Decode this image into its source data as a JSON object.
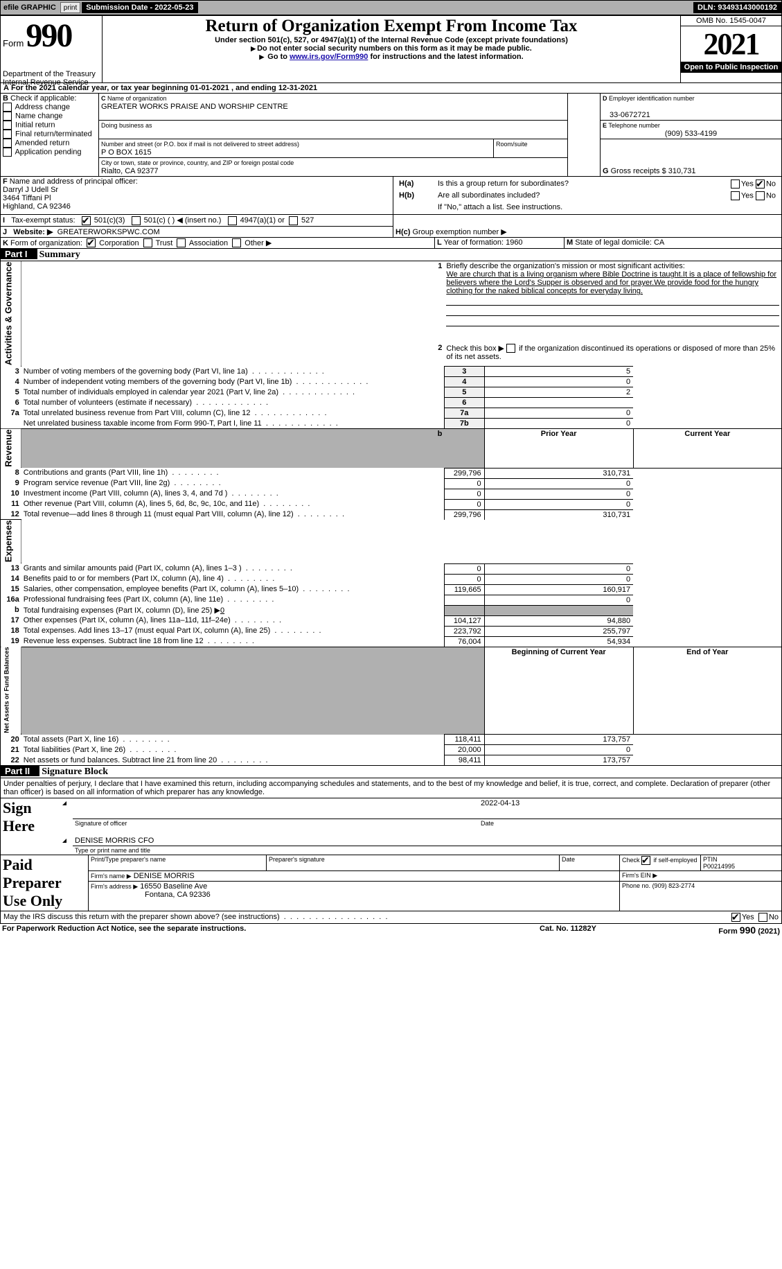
{
  "topbar": {
    "efile_label": "efile GRAPHIC",
    "print_btn": "print",
    "submission_label": "Submission Date - 2022-05-23",
    "dln": "DLN: 93493143000192"
  },
  "header": {
    "form_word": "Form",
    "form_num": "990",
    "dept": "Department of the Treasury",
    "irs": "Internal Revenue Service",
    "title": "Return of Organization Exempt From Income Tax",
    "subtitle": "Under section 501(c), 527, or 4947(a)(1) of the Internal Revenue Code (except private foundations)",
    "note_ssn": "Do not enter social security numbers on this form as it may be made public.",
    "note_goto_pre": "Go to ",
    "note_goto_link": "www.irs.gov/Form990",
    "note_goto_post": " for instructions and the latest information.",
    "omb": "OMB No. 1545-0047",
    "year": "2021",
    "open_public": "Open to Public Inspection"
  },
  "period": {
    "line": "For the 2021 calendar year, or tax year beginning ",
    "begin": "01-01-2021",
    "mid": " , and ending ",
    "end": "12-31-2021"
  },
  "boxB": {
    "label": "Check if applicable:",
    "items": [
      "Address change",
      "Name change",
      "Initial return",
      "Final return/terminated",
      "Amended return",
      "Application pending"
    ]
  },
  "boxC": {
    "name_label": "Name of organization",
    "org_name": "GREATER WORKS PRAISE AND WORSHIP CENTRE",
    "dba_label": "Doing business as",
    "addr_label": "Number and street (or P.O. box if mail is not delivered to street address)",
    "room_label": "Room/suite",
    "addr": "P O BOX 1615",
    "city_label": "City or town, state or province, country, and ZIP or foreign postal code",
    "city": "Rialto, CA  92377"
  },
  "boxD": {
    "label": "Employer identification number",
    "val": "33-0672721"
  },
  "boxE": {
    "label": "Telephone number",
    "val": "(909) 533-4199"
  },
  "boxG": {
    "label": "Gross receipts $",
    "val": "310,731"
  },
  "boxF": {
    "label": "Name and address of principal officer:",
    "name": "Darryl J Udell Sr",
    "addr1": "3464 Tiffani Pl",
    "addr2": "Highland, CA  92346"
  },
  "boxH": {
    "ha": "Is this a group return for subordinates?",
    "hb": "Are all subordinates included?",
    "yes": "Yes",
    "no": "No",
    "ifno": "If \"No,\" attach a list. See instructions.",
    "hc": "Group exemption number ▶"
  },
  "rowI": {
    "label": "Tax-exempt status:",
    "c3": "501(c)(3)",
    "c": "501(c) (  ) ◀ (insert no.)",
    "a1": "4947(a)(1) or",
    "527": "527"
  },
  "rowJ": {
    "label": "Website: ▶",
    "val": "GREATERWORKSPWC.COM"
  },
  "rowK": {
    "label": "Form of organization:",
    "corp": "Corporation",
    "trust": "Trust",
    "assoc": "Association",
    "other": "Other ▶"
  },
  "rowL": {
    "label": "Year of formation:",
    "val": "1960"
  },
  "rowM": {
    "label": "State of legal domicile:",
    "val": "CA"
  },
  "part1": {
    "title_part": "Part I",
    "title_name": "Summary",
    "q1_label": "Briefly describe the organization's mission or most significant activities:",
    "q1_text": "We are church that is a living organism where Bible Doctrine is taught.It is a place of fellowship for believers where the Lord's Supper is observed and for prayer.We provide food for the hungry clothing for the naked biblical concepts for everyday living.",
    "q2": "Check this box ▶       if the organization discontinued its operations or disposed of more than 25% of its net assets.",
    "lines": [
      {
        "n": "3",
        "t": "Number of voting members of the governing body (Part VI, line 1a)",
        "box": "3",
        "v": "5"
      },
      {
        "n": "4",
        "t": "Number of independent voting members of the governing body (Part VI, line 1b)",
        "box": "4",
        "v": "0"
      },
      {
        "n": "5",
        "t": "Total number of individuals employed in calendar year 2021 (Part V, line 2a)",
        "box": "5",
        "v": "2"
      },
      {
        "n": "6",
        "t": "Total number of volunteers (estimate if necessary)",
        "box": "6",
        "v": ""
      },
      {
        "n": "7a",
        "t": "Total unrelated business revenue from Part VIII, column (C), line 12",
        "box": "7a",
        "v": "0"
      },
      {
        "n": "",
        "t": "Net unrelated business taxable income from Form 990-T, Part I, line 11",
        "box": "7b",
        "v": "0"
      }
    ],
    "col_prior": "Prior Year",
    "col_current": "Current Year",
    "rev_rows": [
      {
        "n": "8",
        "t": "Contributions and grants (Part VIII, line 1h)",
        "p": "299,796",
        "c": "310,731"
      },
      {
        "n": "9",
        "t": "Program service revenue (Part VIII, line 2g)",
        "p": "0",
        "c": "0"
      },
      {
        "n": "10",
        "t": "Investment income (Part VIII, column (A), lines 3, 4, and 7d )",
        "p": "0",
        "c": "0"
      },
      {
        "n": "11",
        "t": "Other revenue (Part VIII, column (A), lines 5, 6d, 8c, 9c, 10c, and 11e)",
        "p": "0",
        "c": "0"
      },
      {
        "n": "12",
        "t": "Total revenue—add lines 8 through 11 (must equal Part VIII, column (A), line 12)",
        "p": "299,796",
        "c": "310,731"
      }
    ],
    "exp_rows": [
      {
        "n": "13",
        "t": "Grants and similar amounts paid (Part IX, column (A), lines 1–3 )",
        "p": "0",
        "c": "0"
      },
      {
        "n": "14",
        "t": "Benefits paid to or for members (Part IX, column (A), line 4)",
        "p": "0",
        "c": "0"
      },
      {
        "n": "15",
        "t": "Salaries, other compensation, employee benefits (Part IX, column (A), lines 5–10)",
        "p": "119,665",
        "c": "160,917"
      },
      {
        "n": "16a",
        "t": "Professional fundraising fees (Part IX, column (A), line 11e)",
        "p": "",
        "c": "0"
      },
      {
        "n": "b",
        "t": "Total fundraising expenses (Part IX, column (D), line 25) ▶",
        "p": "shade",
        "c": "shade",
        "extra": "0"
      },
      {
        "n": "17",
        "t": "Other expenses (Part IX, column (A), lines 11a–11d, 11f–24e)",
        "p": "104,127",
        "c": "94,880"
      },
      {
        "n": "18",
        "t": "Total expenses. Add lines 13–17 (must equal Part IX, column (A), line 25)",
        "p": "223,792",
        "c": "255,797"
      },
      {
        "n": "19",
        "t": "Revenue less expenses. Subtract line 18 from line 12",
        "p": "76,004",
        "c": "54,934"
      }
    ],
    "net_h1": "Beginning of Current Year",
    "net_h2": "End of Year",
    "net_rows": [
      {
        "n": "20",
        "t": "Total assets (Part X, line 16)",
        "p": "118,411",
        "c": "173,757"
      },
      {
        "n": "21",
        "t": "Total liabilities (Part X, line 26)",
        "p": "20,000",
        "c": "0"
      },
      {
        "n": "22",
        "t": "Net assets or fund balances. Subtract line 21 from line 20",
        "p": "98,411",
        "c": "173,757"
      }
    ],
    "side_gov": "Activities & Governance",
    "side_rev": "Revenue",
    "side_exp": "Expenses",
    "side_net": "Net Assets or Fund Balances"
  },
  "part2": {
    "title_part": "Part II",
    "title_name": "Signature Block",
    "declaration": "Under penalties of perjury, I declare that I have examined this return, including accompanying schedules and statements, and to the best of my knowledge and belief, it is true, correct, and complete. Declaration of preparer (other than officer) is based on all information of which preparer has any knowledge.",
    "sign_here": "Sign Here",
    "sig_officer": "Signature of officer",
    "sig_date": "2022-04-13",
    "date_label": "Date",
    "officer_name": "DENISE MORRIS CFO",
    "type_name": "Type or print name and title",
    "paid_label": "Paid Preparer Use Only",
    "pp_name_label": "Print/Type preparer's name",
    "pp_sig_label": "Preparer's signature",
    "pp_date_label": "Date",
    "pp_check": "Check         if self-employed",
    "ptin_label": "PTIN",
    "ptin": "P00214995",
    "firm_name_label": "Firm's name    ▶",
    "firm_name": "DENISE MORRIS",
    "firm_ein_label": "Firm's EIN ▶",
    "firm_addr_label": "Firm's address ▶",
    "firm_addr": "16550 Baseline Ave",
    "firm_city": "Fontana, CA  92336",
    "phone_label": "Phone no.",
    "phone": "(909) 823-2774",
    "discuss": "May the IRS discuss this return with the preparer shown above? (see instructions)",
    "yes": "Yes",
    "no": "No"
  },
  "footer": {
    "pra": "For Paperwork Reduction Act Notice, see the separate instructions.",
    "cat": "Cat. No. 11282Y",
    "form": "Form 990 (2021)"
  }
}
